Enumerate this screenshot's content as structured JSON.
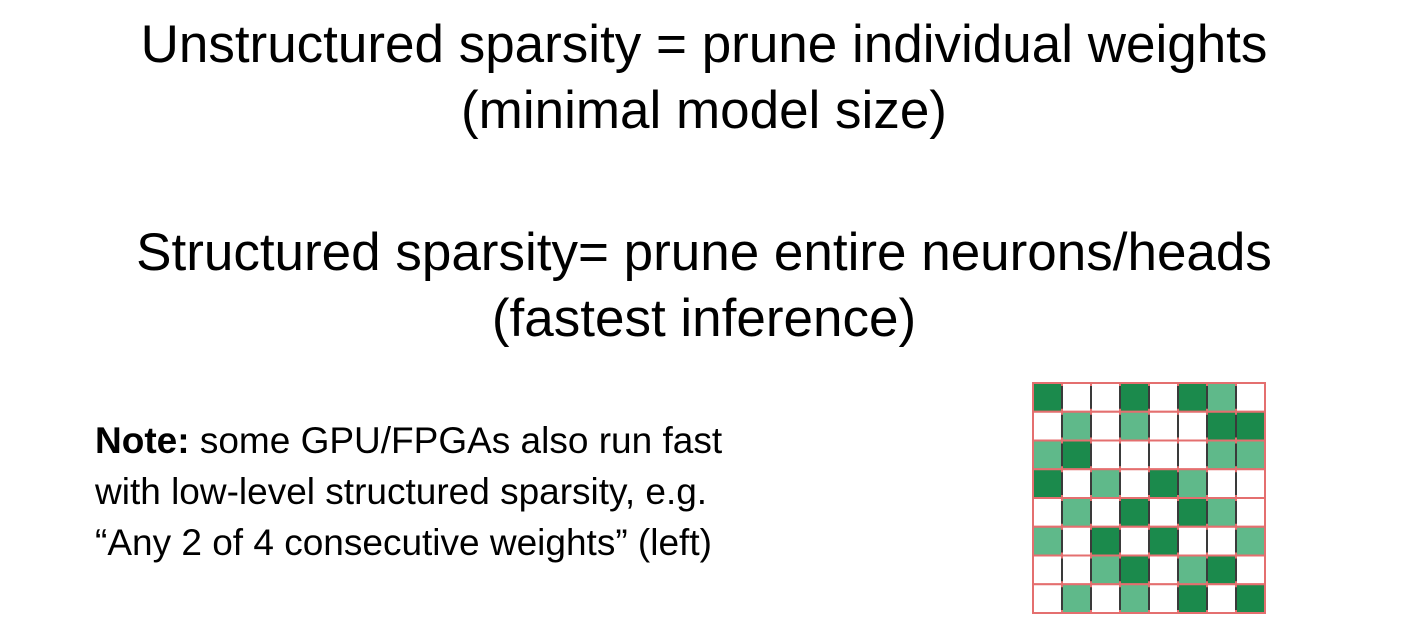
{
  "heading_unstructured": {
    "line1": "Unstructured sparsity = prune individual weights",
    "line2": "(minimal model size)"
  },
  "heading_structured": {
    "line1": "Structured sparsity= prune entire neurons/heads",
    "line2": "(fastest inference)"
  },
  "note": {
    "label": "Note:",
    "line1": " some GPU/FPGAs also run fast",
    "line2": "with low-level structured sparsity, e.g.",
    "line3": "“Any 2 of 4  consecutive weights” (left)"
  },
  "sparsity_grid": {
    "rows": 8,
    "cols": 8,
    "cells": [
      [
        "dark",
        "white",
        "white",
        "dark",
        "white",
        "dark",
        "medium",
        "white"
      ],
      [
        "white",
        "medium",
        "white",
        "medium",
        "white",
        "white",
        "dark",
        "dark"
      ],
      [
        "medium",
        "dark",
        "white",
        "white",
        "white",
        "white",
        "medium",
        "medium"
      ],
      [
        "dark",
        "white",
        "medium",
        "white",
        "dark",
        "medium",
        "white",
        "white"
      ],
      [
        "white",
        "medium",
        "white",
        "dark",
        "white",
        "dark",
        "medium",
        "white"
      ],
      [
        "medium",
        "white",
        "dark",
        "white",
        "dark",
        "white",
        "white",
        "medium"
      ],
      [
        "white",
        "white",
        "medium",
        "dark",
        "white",
        "medium",
        "dark",
        "white"
      ],
      [
        "white",
        "medium",
        "white",
        "medium",
        "white",
        "dark",
        "white",
        "dark"
      ]
    ],
    "colors": {
      "dark": "#1b8a4c",
      "medium": "#5fb98a",
      "white": "#ffffff",
      "cell_border": "#e46f6f",
      "column_separator": "#3a3a3a"
    }
  }
}
